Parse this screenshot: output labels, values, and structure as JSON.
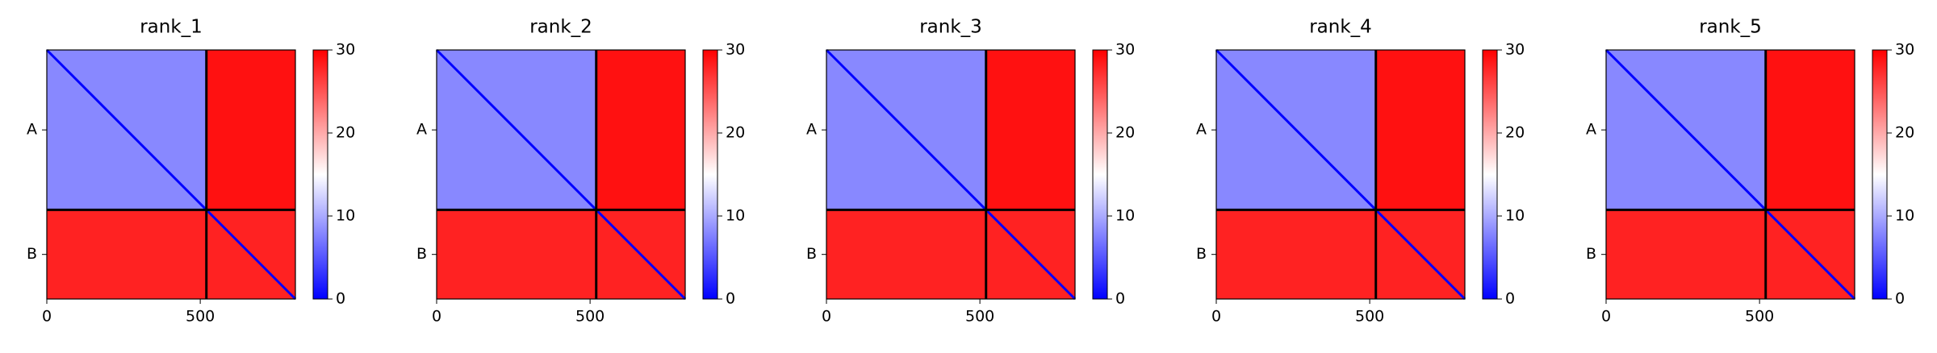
{
  "chart_data": [
    {
      "type": "heatmap",
      "title": "rank_1",
      "chains": [
        "A",
        "B"
      ],
      "chain_boundaries": [
        520
      ],
      "xlim": [
        0,
        810
      ],
      "xticks": [
        0,
        500
      ],
      "clim": [
        0,
        30
      ],
      "cticks": [
        0,
        10,
        20,
        30
      ],
      "colormap": "bwr",
      "block_values": [
        [
          8,
          29
        ],
        [
          28,
          28
        ]
      ],
      "diagonal_value": 0
    },
    {
      "type": "heatmap",
      "title": "rank_2",
      "chains": [
        "A",
        "B"
      ],
      "chain_boundaries": [
        520
      ],
      "xlim": [
        0,
        810
      ],
      "xticks": [
        0,
        500
      ],
      "clim": [
        0,
        30
      ],
      "cticks": [
        0,
        10,
        20,
        30
      ],
      "colormap": "bwr",
      "block_values": [
        [
          8,
          29
        ],
        [
          28,
          28
        ]
      ],
      "diagonal_value": 0
    },
    {
      "type": "heatmap",
      "title": "rank_3",
      "chains": [
        "A",
        "B"
      ],
      "chain_boundaries": [
        520
      ],
      "xlim": [
        0,
        810
      ],
      "xticks": [
        0,
        500
      ],
      "clim": [
        0,
        30
      ],
      "cticks": [
        0,
        10,
        20,
        30
      ],
      "colormap": "bwr",
      "block_values": [
        [
          8,
          29
        ],
        [
          28,
          28
        ]
      ],
      "diagonal_value": 0
    },
    {
      "type": "heatmap",
      "title": "rank_4",
      "chains": [
        "A",
        "B"
      ],
      "chain_boundaries": [
        520
      ],
      "xlim": [
        0,
        810
      ],
      "xticks": [
        0,
        500
      ],
      "clim": [
        0,
        30
      ],
      "cticks": [
        0,
        10,
        20,
        30
      ],
      "colormap": "bwr",
      "block_values": [
        [
          8,
          29
        ],
        [
          28,
          28
        ]
      ],
      "diagonal_value": 0
    },
    {
      "type": "heatmap",
      "title": "rank_5",
      "chains": [
        "A",
        "B"
      ],
      "chain_boundaries": [
        520
      ],
      "xlim": [
        0,
        810
      ],
      "xticks": [
        0,
        500
      ],
      "clim": [
        0,
        30
      ],
      "cticks": [
        0,
        10,
        20,
        30
      ],
      "colormap": "bwr",
      "block_values": [
        [
          8,
          29
        ],
        [
          28,
          28
        ]
      ],
      "diagonal_value": 0
    }
  ]
}
